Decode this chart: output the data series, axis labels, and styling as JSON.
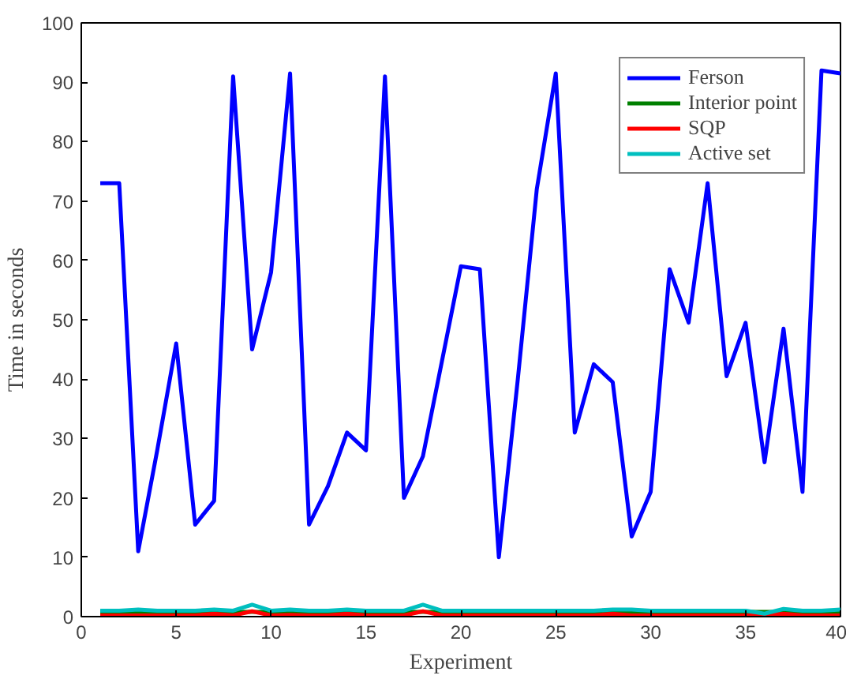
{
  "chart_data": {
    "type": "line",
    "xlabel": "Experiment",
    "ylabel": "Time in seconds",
    "x": [
      1,
      2,
      3,
      4,
      5,
      6,
      7,
      8,
      9,
      10,
      11,
      12,
      13,
      14,
      15,
      16,
      17,
      18,
      19,
      20,
      21,
      22,
      23,
      24,
      25,
      26,
      27,
      28,
      29,
      30,
      31,
      32,
      33,
      34,
      35,
      36,
      37,
      38,
      39,
      40
    ],
    "xlim": [
      0,
      40
    ],
    "ylim": [
      0,
      100
    ],
    "xticks": [
      0,
      5,
      10,
      15,
      20,
      25,
      30,
      35,
      40
    ],
    "yticks": [
      0,
      10,
      20,
      30,
      40,
      50,
      60,
      70,
      80,
      90,
      100
    ],
    "grid": false,
    "legend": "top right",
    "line_style": "solid",
    "marker": "none",
    "series": [
      {
        "name": "Ferson",
        "color": "#0000ff",
        "values": [
          73,
          73,
          11,
          28,
          46,
          15.5,
          19.5,
          91,
          45,
          58,
          91.5,
          15.5,
          22,
          31,
          28,
          91,
          20,
          27,
          43,
          59,
          58.5,
          10,
          40,
          72,
          91.5,
          31,
          42.5,
          39.5,
          13.5,
          21,
          58.5,
          49.5,
          73,
          40.5,
          49.5,
          26,
          48.5,
          21,
          92,
          91.5
        ]
      },
      {
        "name": "Interior point",
        "color": "#008000",
        "values": [
          0.8,
          0.8,
          0.8,
          0.8,
          0.8,
          0.8,
          0.8,
          0.8,
          0.8,
          0.8,
          0.8,
          0.8,
          0.8,
          0.8,
          0.8,
          0.8,
          0.8,
          0.8,
          0.8,
          0.8,
          0.8,
          0.8,
          0.8,
          0.8,
          0.8,
          0.8,
          0.8,
          0.8,
          0.8,
          0.8,
          0.8,
          0.8,
          0.8,
          0.8,
          0.8,
          0.8,
          0.8,
          0.8,
          0.8,
          0.8
        ]
      },
      {
        "name": "SQP",
        "color": "#ff0000",
        "values": [
          0.2,
          0.2,
          0.2,
          0.2,
          0.2,
          0.2,
          0.5,
          0.2,
          0.9,
          0.2,
          0.3,
          0.2,
          0.2,
          0.5,
          0.2,
          0.2,
          0.2,
          0.9,
          0.2,
          0.2,
          0.2,
          0.2,
          0.2,
          0.2,
          0.2,
          0.2,
          0.2,
          0.5,
          0.2,
          0.2,
          0.2,
          0.2,
          0.2,
          0.2,
          0.2,
          0.2,
          0.5,
          0.2,
          0.2,
          0.2
        ]
      },
      {
        "name": "Active set",
        "color": "#00bfbf",
        "values": [
          1.0,
          1.0,
          1.2,
          1.0,
          1.0,
          1.0,
          1.2,
          1.0,
          2.0,
          1.0,
          1.2,
          1.0,
          1.0,
          1.2,
          1.0,
          1.0,
          1.0,
          2.0,
          1.0,
          1.0,
          1.0,
          1.0,
          1.0,
          1.0,
          1.0,
          1.0,
          1.0,
          1.2,
          1.2,
          1.0,
          1.0,
          1.0,
          1.0,
          1.0,
          1.0,
          0.5,
          1.3,
          1.0,
          1.0,
          1.2
        ]
      }
    ]
  }
}
